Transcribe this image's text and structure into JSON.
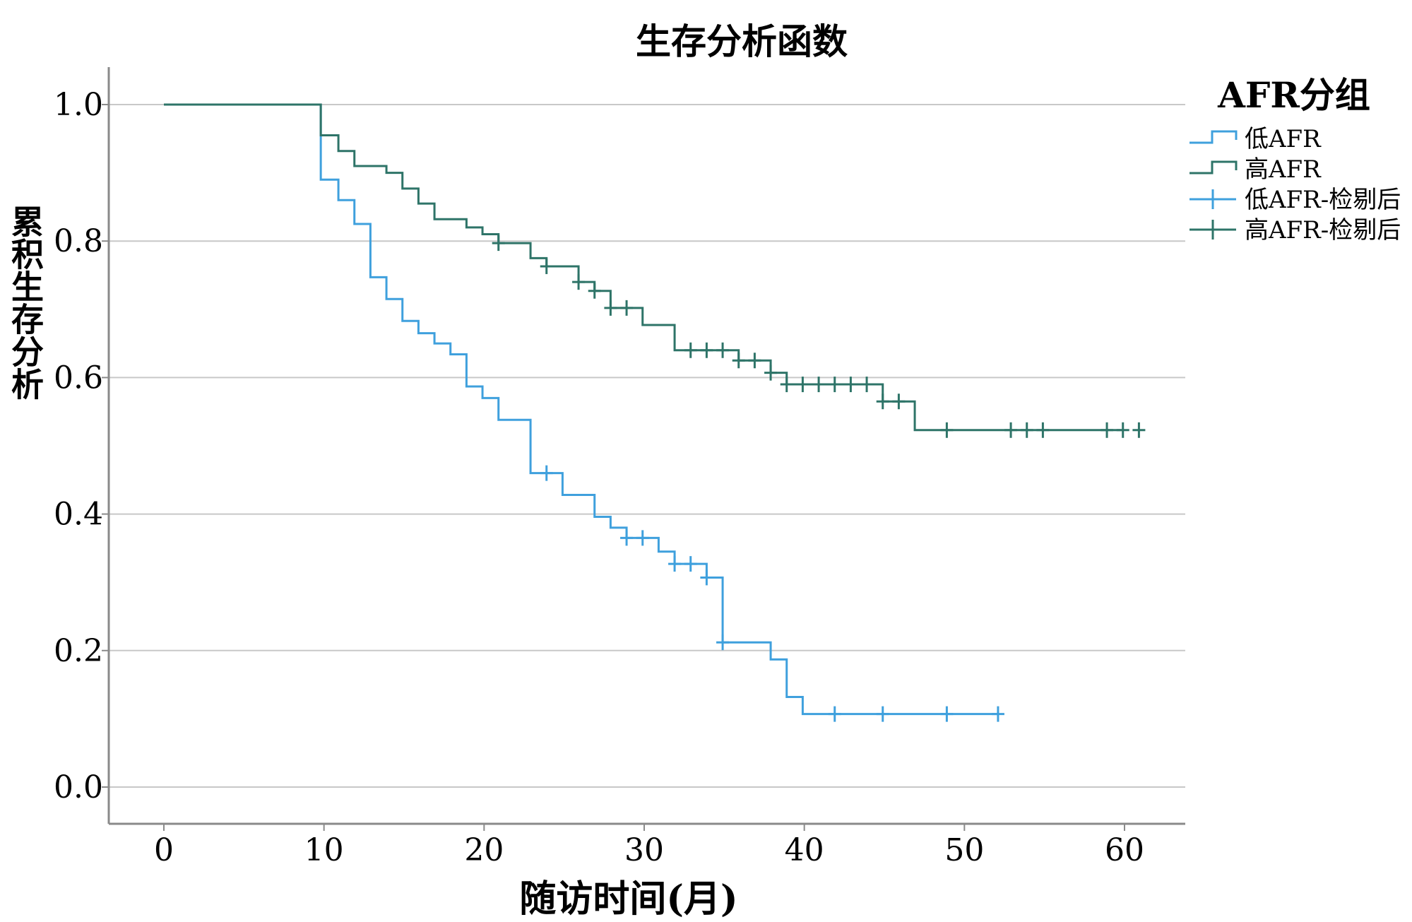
{
  "chart_data": {
    "type": "line",
    "title": "生存分析函数",
    "xlabel": "随访时间(月)",
    "ylabel": "累积生存分析",
    "xlim": [
      -3,
      63
    ],
    "ylim": [
      -0.05,
      1.05
    ],
    "x_ticks": [
      "0",
      "10",
      "20",
      "30",
      "40",
      "50",
      "60"
    ],
    "x_tick_values": [
      0,
      10,
      20,
      30,
      40,
      50,
      60
    ],
    "y_ticks": [
      "0.0",
      "0.2",
      "0.4",
      "0.6",
      "0.8",
      "1.0"
    ],
    "y_tick_values": [
      0.0,
      0.2,
      0.4,
      0.6,
      0.8,
      1.0
    ],
    "grid": "horizontal",
    "legend_position": "top-right",
    "legend_title": "AFR分组",
    "series": [
      {
        "name": "低AFR",
        "color": "#3fa0dd",
        "steps": [
          [
            0,
            1.0
          ],
          [
            9.8,
            0.89
          ],
          [
            10.9,
            0.86
          ],
          [
            11.9,
            0.825
          ],
          [
            12.9,
            0.747
          ],
          [
            13.9,
            0.715
          ],
          [
            14.9,
            0.683
          ],
          [
            15.9,
            0.665
          ],
          [
            16.9,
            0.65
          ],
          [
            17.9,
            0.634
          ],
          [
            18.9,
            0.587
          ],
          [
            19.9,
            0.57
          ],
          [
            20.9,
            0.538
          ],
          [
            22.9,
            0.46
          ],
          [
            24.9,
            0.428
          ],
          [
            26.9,
            0.396
          ],
          [
            27.9,
            0.38
          ],
          [
            28.9,
            0.365
          ],
          [
            30.9,
            0.345
          ],
          [
            31.9,
            0.327
          ],
          [
            33.9,
            0.307
          ],
          [
            34.9,
            0.212
          ],
          [
            37.9,
            0.187
          ],
          [
            38.9,
            0.132
          ],
          [
            39.9,
            0.107
          ],
          [
            52.1,
            0.107
          ]
        ],
        "censored": [
          23.9,
          28.9,
          29.9,
          31.9,
          32.9,
          33.9,
          34.9,
          41.9,
          44.9,
          48.9,
          52.1
        ]
      },
      {
        "name": "高AFR",
        "color": "#2e7468",
        "steps": [
          [
            0,
            1.0
          ],
          [
            9.8,
            0.955
          ],
          [
            10.9,
            0.932
          ],
          [
            11.9,
            0.91
          ],
          [
            13.9,
            0.9
          ],
          [
            14.9,
            0.877
          ],
          [
            15.9,
            0.855
          ],
          [
            16.9,
            0.832
          ],
          [
            18.9,
            0.82
          ],
          [
            19.9,
            0.81
          ],
          [
            20.9,
            0.797
          ],
          [
            22.9,
            0.775
          ],
          [
            23.9,
            0.763
          ],
          [
            25.9,
            0.74
          ],
          [
            26.9,
            0.727
          ],
          [
            27.9,
            0.702
          ],
          [
            29.9,
            0.677
          ],
          [
            31.9,
            0.64
          ],
          [
            35.9,
            0.625
          ],
          [
            37.9,
            0.607
          ],
          [
            38.9,
            0.59
          ],
          [
            44.9,
            0.565
          ],
          [
            46.9,
            0.523
          ],
          [
            59.8,
            0.523
          ]
        ],
        "censored": [
          20.9,
          23.9,
          25.9,
          26.9,
          27.9,
          28.9,
          32.9,
          33.9,
          34.9,
          35.9,
          36.9,
          37.9,
          38.9,
          39.9,
          40.9,
          41.9,
          42.9,
          43.9,
          44.9,
          45.9,
          48.9,
          52.9,
          53.9,
          54.9,
          58.9,
          59.9,
          60.9
        ]
      }
    ],
    "legend": [
      {
        "label": "低AFR",
        "kind": "line",
        "color": "#3fa0dd"
      },
      {
        "label": "高AFR",
        "kind": "line",
        "color": "#2e7468"
      },
      {
        "label": "低AFR-检剔后",
        "kind": "censor",
        "color": "#3fa0dd"
      },
      {
        "label": "高AFR-检剔后",
        "kind": "censor",
        "color": "#2e7468"
      }
    ]
  }
}
